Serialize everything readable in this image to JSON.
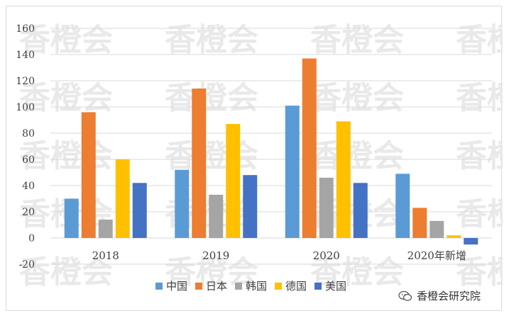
{
  "chart_data": {
    "type": "bar",
    "categories": [
      "2018",
      "2019",
      "2020",
      "2020年新增"
    ],
    "series": [
      {
        "name": "中国",
        "values": [
          30,
          52,
          101,
          49
        ],
        "color": "#5B9BD5"
      },
      {
        "name": "日本",
        "values": [
          96,
          114,
          137,
          23
        ],
        "color": "#ED7D31"
      },
      {
        "name": "韩国",
        "values": [
          14,
          33,
          46,
          13
        ],
        "color": "#A5A5A5"
      },
      {
        "name": "德国",
        "values": [
          60,
          87,
          89,
          2
        ],
        "color": "#FFC000"
      },
      {
        "name": "美国",
        "values": [
          42,
          48,
          42,
          -5
        ],
        "color": "#4472C4"
      }
    ],
    "ylim": [
      -20,
      160
    ],
    "yticks": [
      -20,
      0,
      20,
      40,
      60,
      80,
      100,
      120,
      140,
      160
    ],
    "grid": true,
    "legend": "bottom"
  },
  "watermark": "香橙会",
  "brand": {
    "label": "香橙会研究院",
    "icon": "wechat-icon"
  }
}
